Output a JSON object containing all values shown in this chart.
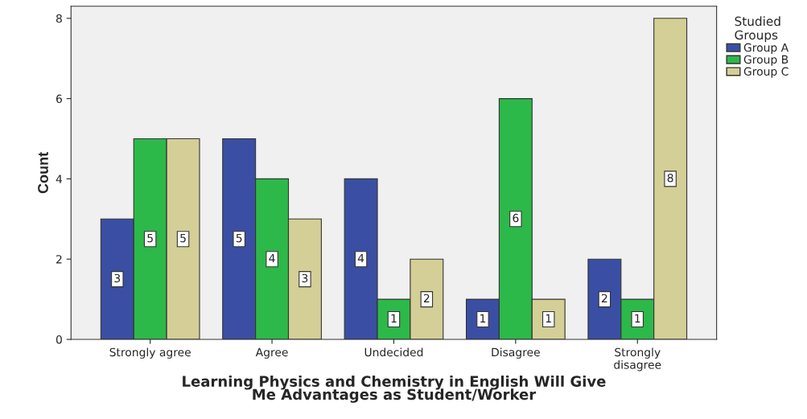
{
  "chart_data": {
    "type": "bar",
    "xlabel": "Learning Physics and Chemistry in English Will Give\nMe Advantages as Student/Worker",
    "ylabel": "Count",
    "categories": [
      "Strongly agree",
      "Agree",
      "Undecided",
      "Disagree",
      "Strongly\ndisagree"
    ],
    "series": [
      {
        "name": "Group A",
        "color": "#3a4fa3",
        "values": [
          3,
          5,
          4,
          1,
          2
        ]
      },
      {
        "name": "Group B",
        "color": "#2db84a",
        "values": [
          5,
          4,
          1,
          6,
          1
        ]
      },
      {
        "name": "Group C",
        "color": "#d4cf96",
        "values": [
          5,
          3,
          2,
          1,
          8
        ]
      }
    ],
    "legend_title": "Studied\nGroups",
    "legend": "top right",
    "ylim": [
      0,
      8.3
    ],
    "yticks": [
      0,
      2,
      4,
      6,
      8
    ],
    "data_labels": true,
    "grid": false
  }
}
